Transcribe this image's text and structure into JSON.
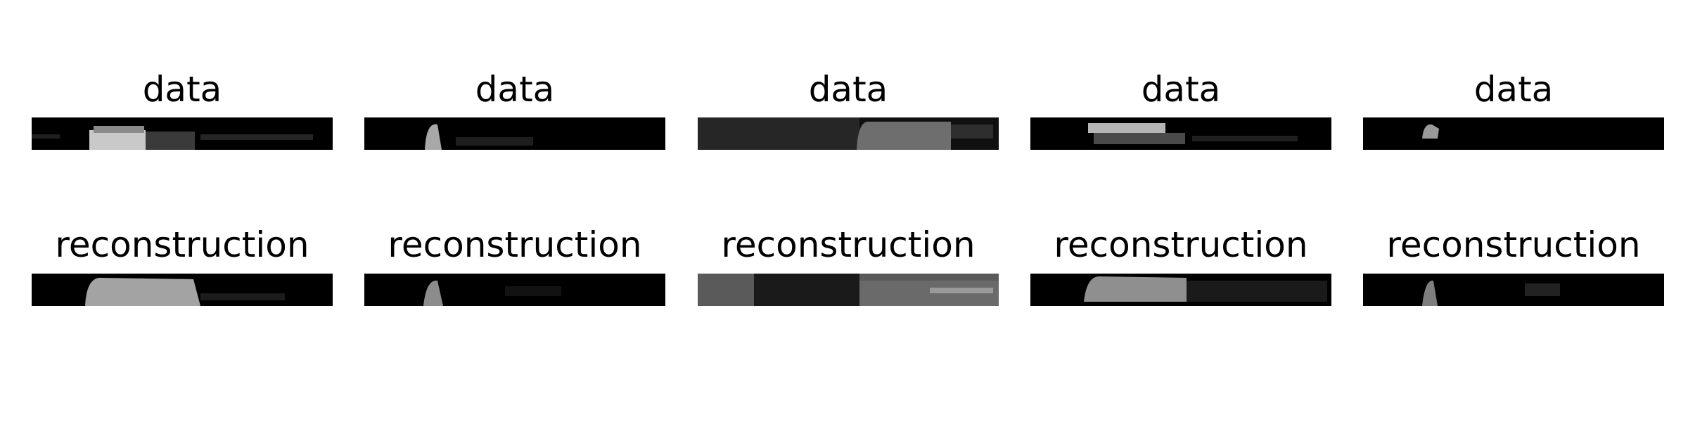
{
  "figure": {
    "rows": [
      {
        "row_id": "data",
        "panels": [
          {
            "title": "data",
            "image_description": "grayscale spectrogram-like strip"
          },
          {
            "title": "data",
            "image_description": "grayscale spectrogram-like strip"
          },
          {
            "title": "data",
            "image_description": "grayscale spectrogram-like strip"
          },
          {
            "title": "data",
            "image_description": "grayscale spectrogram-like strip"
          },
          {
            "title": "data",
            "image_description": "grayscale spectrogram-like strip"
          }
        ]
      },
      {
        "row_id": "reconstruction",
        "panels": [
          {
            "title": "reconstruction",
            "image_description": "grayscale reconstructed strip"
          },
          {
            "title": "reconstruction",
            "image_description": "grayscale reconstructed strip"
          },
          {
            "title": "reconstruction",
            "image_description": "grayscale reconstructed strip"
          },
          {
            "title": "reconstruction",
            "image_description": "grayscale reconstructed strip"
          },
          {
            "title": "reconstruction",
            "image_description": "grayscale reconstructed strip"
          }
        ]
      }
    ]
  }
}
